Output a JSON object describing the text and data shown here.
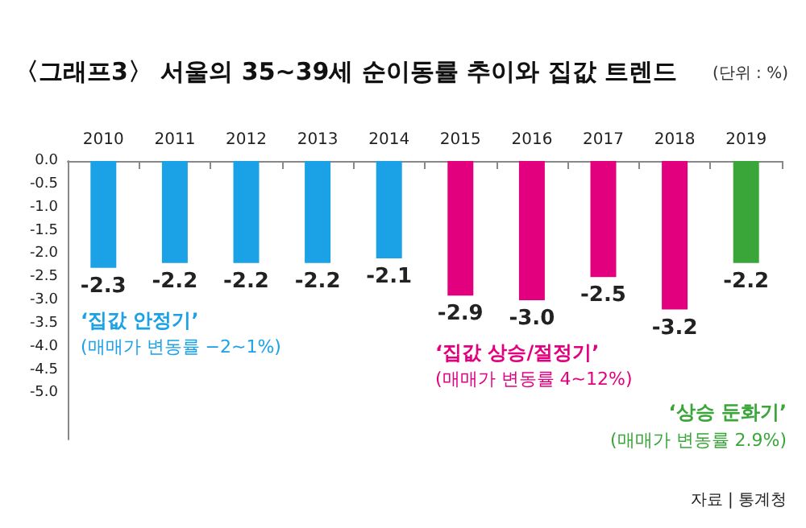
{
  "chart_data": {
    "type": "bar",
    "title": "〈그래프3〉 서울의 35~39세 순이동률 추이와 집값 트렌드",
    "subtitle": "(단위 : %)",
    "categories": [
      "2010",
      "2011",
      "2012",
      "2013",
      "2014",
      "2015",
      "2016",
      "2017",
      "2018",
      "2019"
    ],
    "values": [
      -2.3,
      -2.2,
      -2.2,
      -2.2,
      -2.1,
      -2.9,
      -3.0,
      -2.5,
      -3.2,
      -2.2
    ],
    "colors": [
      "#1ba1e6",
      "#1ba1e6",
      "#1ba1e6",
      "#1ba1e6",
      "#1ba1e6",
      "#e3007f",
      "#e3007f",
      "#e3007f",
      "#e3007f",
      "#3aa639"
    ],
    "value_labels": [
      "-2.3",
      "-2.2",
      "-2.2",
      "-2.2",
      "-2.1",
      "-2.9",
      "-3.0",
      "-2.5",
      "-3.2",
      "-2.2"
    ],
    "ylim": [
      -6,
      0
    ],
    "yticks": [
      {
        "value": -5,
        "label": "-5.0"
      },
      -4.5,
      {
        "value": -4,
        "label": "-4.0"
      },
      -3.5,
      {
        "value": -3,
        "label": "-3.0"
      },
      -2.5,
      {
        "value": -2,
        "label": "-2.0"
      },
      -1.5,
      {
        "value": -1,
        "label": "-1.0"
      },
      -0.5,
      {
        "value": 0,
        "label": "0.0"
      }
    ],
    "grid": false,
    "annotations": [
      "‘집값 안정기’",
      "(매매가 변동률 −2~1%)",
      "‘집값 상승/절정기’",
      "(매매가 변동률 4~12%)",
      "‘상승 둔화기’",
      "(매매가 변동률 2.9%)",
      "자료 | 통계청"
    ]
  }
}
